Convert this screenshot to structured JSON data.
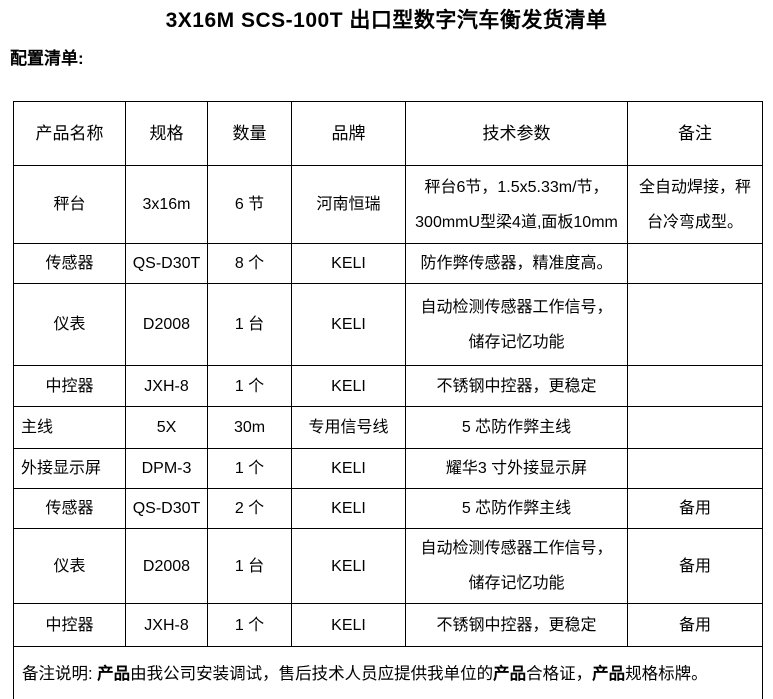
{
  "title": "3X16M SCS-100T 出口型数字汽车衡发货清单",
  "subtitle": "配置清单:",
  "table": {
    "headers": [
      "产品名称",
      "规格",
      "数量",
      "品牌",
      "技术参数",
      "备注"
    ],
    "rows": [
      {
        "name": "秤台",
        "spec": "3x16m",
        "qty": "6 节",
        "brand": "河南恒瑞",
        "tech": "秤台6节，1.5x5.33m/节，\n300mmU型梁4道,面板10mm",
        "note": "全自动焊接，秤\n台冷弯成型。"
      },
      {
        "name": "传感器",
        "spec": "QS-D30T",
        "qty": "8 个",
        "brand": "KELI",
        "tech": "防作弊传感器，精准度高。",
        "note": ""
      },
      {
        "name": "仪表",
        "spec": "D2008",
        "qty": "1 台",
        "brand": "KELI",
        "tech": "自动检测传感器工作信号，\n储存记忆功能",
        "note": ""
      },
      {
        "name": "中控器",
        "spec": "JXH-8",
        "qty": "1 个",
        "brand": "KELI",
        "tech": "不锈钢中控器，更稳定",
        "note": ""
      },
      {
        "name": "主线",
        "spec": "5X",
        "qty": "30m",
        "brand": "专用信号线",
        "tech": "5 芯防作弊主线",
        "note": ""
      },
      {
        "name": "外接显示屏",
        "spec": "DPM-3",
        "qty": "1 个",
        "brand": "KELI",
        "tech": "耀华3 寸外接显示屏",
        "note": ""
      },
      {
        "name": "传感器",
        "spec": "QS-D30T",
        "qty": "2 个",
        "brand": "KELI",
        "tech": "5 芯防作弊主线",
        "note": "备用"
      },
      {
        "name": "仪表",
        "spec": "D2008",
        "qty": "1 台",
        "brand": "KELI",
        "tech": "自动检测传感器工作信号，\n储存记忆功能",
        "note": "备用"
      },
      {
        "name": "中控器",
        "spec": "JXH-8",
        "qty": "1 个",
        "brand": "KELI",
        "tech": "不锈钢中控器，更稳定",
        "note": "备用"
      }
    ],
    "footer_parts": [
      {
        "text": "备注说明: ",
        "bold": false
      },
      {
        "text": "产品",
        "bold": true
      },
      {
        "text": "由我公司安装调试，售后技术人员应提供我单位的",
        "bold": false
      },
      {
        "text": "产品",
        "bold": true
      },
      {
        "text": "合格证，",
        "bold": false
      },
      {
        "text": "产品",
        "bold": true
      },
      {
        "text": "规格标牌。",
        "bold": false
      }
    ]
  },
  "colors": {
    "text": "#000000",
    "background": "#ffffff",
    "border": "#000000"
  }
}
